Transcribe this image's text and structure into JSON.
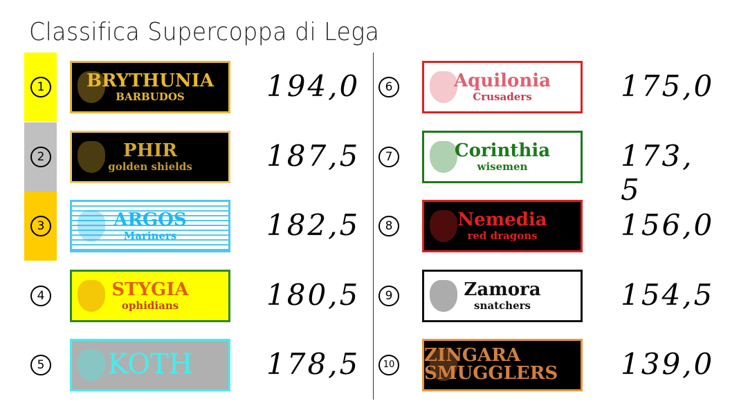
{
  "title": "Classifica Supercoppa di Lega",
  "colors": {
    "first": "#ffff00",
    "second": "#c0c0c0",
    "third": "#ffcc00"
  },
  "left": [
    {
      "rank": "1",
      "name": "BRYTHUNIA",
      "sub": "BARBUDOS",
      "score": "194,0",
      "icon": "viking-icon"
    },
    {
      "rank": "2",
      "name": "PHIR",
      "sub": "golden shields",
      "score": "187,5",
      "icon": "shield-icon"
    },
    {
      "rank": "3",
      "name": "ARGOS",
      "sub": "Mariners",
      "score": "182,5",
      "icon": "shark-icon"
    },
    {
      "rank": "4",
      "name": "STYGIA",
      "sub": "ophidians",
      "score": "180,5",
      "icon": "snake-icon"
    },
    {
      "rank": "5",
      "name": "KOTH",
      "sub": "",
      "score": "178,5",
      "icon": "sword-icon"
    }
  ],
  "right": [
    {
      "rank": "6",
      "name": "Aquilonia",
      "sub": "Crusaders",
      "score": "175,0",
      "icon": "crusader-icon"
    },
    {
      "rank": "7",
      "name": "Corinthia",
      "sub": "wisemen",
      "score": "173, 5",
      "icon": "laurel-icon"
    },
    {
      "rank": "8",
      "name": "Nemedia",
      "sub": "red dragons",
      "score": "156,0",
      "icon": "dragon-icon"
    },
    {
      "rank": "9",
      "name": "Zamora",
      "sub": "snatchers",
      "score": "154,5",
      "icon": "dagger-icon"
    },
    {
      "rank": "10",
      "name": "ZINGARA SMUGGLERS",
      "sub": "",
      "score": "139,0",
      "icon": "skull-icon"
    }
  ]
}
